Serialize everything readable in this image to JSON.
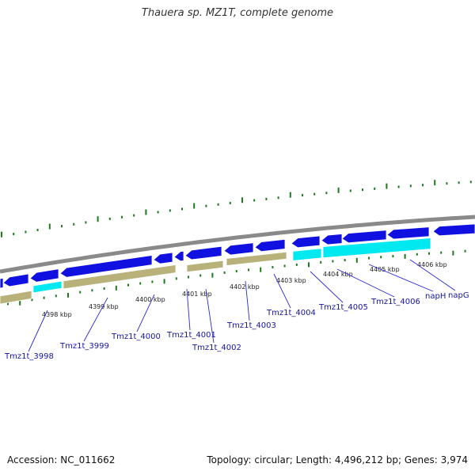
{
  "title": "Thauera sp. MZ1T, complete genome",
  "footer": {
    "accession": "Accession: NC_011662",
    "summary": "Topology: circular; Length: 4,496,212 bp; Genes: 3,974"
  },
  "colors": {
    "backbone": "#8a8a8a",
    "cds": "#1010e0",
    "highlight_cds": "#00e8f0",
    "gene_feature": "#b8b27a",
    "ticks": "#1f7a1f",
    "label": "#1414a0"
  },
  "kbp_ticks": [
    "4398 kbp",
    "4399 kbp",
    "4400 kbp",
    "4401 kbp",
    "4402 kbp",
    "4403 kbp",
    "4404 kbp",
    "4405 kbp",
    "4406 kbp"
  ],
  "genes": [
    {
      "name": "Tmz1t_3998"
    },
    {
      "name": "Tmz1t_3999"
    },
    {
      "name": "Tmz1t_4000"
    },
    {
      "name": "Tmz1t_4001"
    },
    {
      "name": "Tmz1t_4002"
    },
    {
      "name": "Tmz1t_4003"
    },
    {
      "name": "Tmz1t_4004"
    },
    {
      "name": "Tmz1t_4005"
    },
    {
      "name": "Tmz1t_4006"
    },
    {
      "name": "napH"
    },
    {
      "name": "napG"
    }
  ]
}
